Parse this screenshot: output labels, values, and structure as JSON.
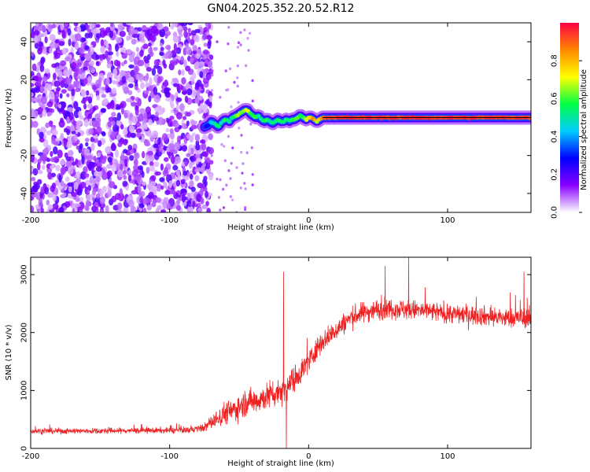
{
  "figure": {
    "title": "GN04.2025.352.20.52.R12"
  },
  "colors": {
    "snr_line": "#ee2222",
    "axis": "#000000"
  },
  "chart_data": [
    {
      "type": "heatmap",
      "panel": "top",
      "xlabel": "Height of straight line (km)",
      "ylabel": "Frequency (Hz)",
      "xlim": [
        -200,
        160
      ],
      "ylim": [
        -50,
        50
      ],
      "xticks": [
        -200,
        -100,
        0,
        100
      ],
      "xtick_labels": [
        "-200",
        "-100",
        "0",
        "100"
      ],
      "yticks": [
        -40,
        -20,
        0,
        20,
        40
      ],
      "ytick_labels": [
        "-40",
        "-20",
        "0",
        "20",
        "40"
      ],
      "noise_region_x": [
        -200,
        -70
      ],
      "noise_amplitude_range": [
        0.0,
        0.2
      ],
      "signal_track": {
        "x": [
          -75,
          -72,
          -70,
          -68,
          -65,
          -62,
          -60,
          -57,
          -55,
          -52,
          -50,
          -48,
          -46,
          -44,
          -42,
          -40,
          -38,
          -36,
          -34,
          -32,
          -30,
          -28,
          -26,
          -24,
          -22,
          -20,
          -18,
          -16,
          -14,
          -12,
          -10,
          -8,
          -6,
          -4,
          -2,
          0,
          2,
          4,
          6,
          8,
          10,
          15,
          20,
          40,
          60,
          80,
          100,
          120,
          140,
          160
        ],
        "freq": [
          -5,
          -4,
          -2,
          -3,
          -5,
          -2,
          -1,
          -2,
          0,
          1,
          2,
          3,
          4,
          4,
          2,
          1,
          0,
          1,
          -1,
          -2,
          -1,
          -2,
          -3,
          -2,
          -1,
          -2,
          -2,
          -1,
          -2,
          -1,
          -1,
          0,
          1,
          0,
          -1,
          0,
          0,
          -1,
          -2,
          -1,
          0,
          0,
          0,
          0,
          0,
          0,
          0,
          0,
          0,
          0
        ],
        "amplitude": [
          0.2,
          0.3,
          0.45,
          0.5,
          0.55,
          0.45,
          0.6,
          0.5,
          0.55,
          0.6,
          0.65,
          0.6,
          0.7,
          0.75,
          0.6,
          0.55,
          0.6,
          0.5,
          0.45,
          0.55,
          0.6,
          0.5,
          0.55,
          0.5,
          0.6,
          0.5,
          0.55,
          0.6,
          0.5,
          0.55,
          0.6,
          0.65,
          0.55,
          0.6,
          0.7,
          0.75,
          0.8,
          0.85,
          0.7,
          0.8,
          0.9,
          0.95,
          0.95,
          0.95,
          0.95,
          0.95,
          0.95,
          0.95,
          0.95,
          0.95
        ]
      }
    },
    {
      "type": "colorbar",
      "label": "Normalized spectral amplitude",
      "range": [
        0,
        1
      ],
      "ticks": [
        0.0,
        0.2,
        0.4,
        0.6,
        0.8
      ],
      "tick_labels": [
        "0.0",
        "0.2",
        "0.4",
        "0.6",
        "0.8"
      ],
      "stops": [
        "#ffffff",
        "#8800ff",
        "#0000ff",
        "#00ccff",
        "#00ff44",
        "#ffff00",
        "#ff8800",
        "#ff0044"
      ]
    },
    {
      "type": "line",
      "panel": "bottom",
      "xlabel": "Height of straight line (km)",
      "ylabel": "SNR (10 * v/v)",
      "xlim": [
        -200,
        160
      ],
      "ylim": [
        0,
        3300
      ],
      "xticks": [
        -200,
        -100,
        0,
        100
      ],
      "xtick_labels": [
        "-200",
        "-100",
        "0",
        "100"
      ],
      "yticks": [
        0,
        1000,
        2000,
        3000
      ],
      "ytick_labels": [
        "0",
        "1000",
        "2000",
        "3000"
      ],
      "trend": {
        "x": [
          -200,
          -160,
          -120,
          -100,
          -85,
          -75,
          -70,
          -65,
          -60,
          -55,
          -50,
          -45,
          -40,
          -35,
          -30,
          -25,
          -20,
          -15,
          -10,
          -5,
          0,
          5,
          10,
          15,
          20,
          25,
          30,
          40,
          50,
          60,
          70,
          80,
          100,
          120,
          140,
          160
        ],
        "y": [
          300,
          300,
          310,
          310,
          320,
          360,
          450,
          520,
          620,
          650,
          720,
          800,
          820,
          850,
          900,
          950,
          1000,
          1100,
          1200,
          1350,
          1500,
          1700,
          1850,
          1950,
          2050,
          2150,
          2250,
          2350,
          2400,
          2420,
          2400,
          2380,
          2330,
          2300,
          2250,
          2250
        ],
        "noise": [
          90,
          90,
          90,
          90,
          100,
          120,
          220,
          300,
          350,
          380,
          400,
          400,
          400,
          420,
          430,
          450,
          450,
          420,
          400,
          380,
          360,
          340,
          320,
          320,
          320,
          320,
          320,
          320,
          320,
          320,
          320,
          300,
          300,
          300,
          300,
          300
        ]
      },
      "spikes": [
        {
          "x": -18,
          "y": 3050
        },
        {
          "x": -16,
          "y": 0
        },
        {
          "x": 72,
          "y": 3300
        },
        {
          "x": 55,
          "y": 3150
        },
        {
          "x": 155,
          "y": 3050
        }
      ]
    }
  ]
}
